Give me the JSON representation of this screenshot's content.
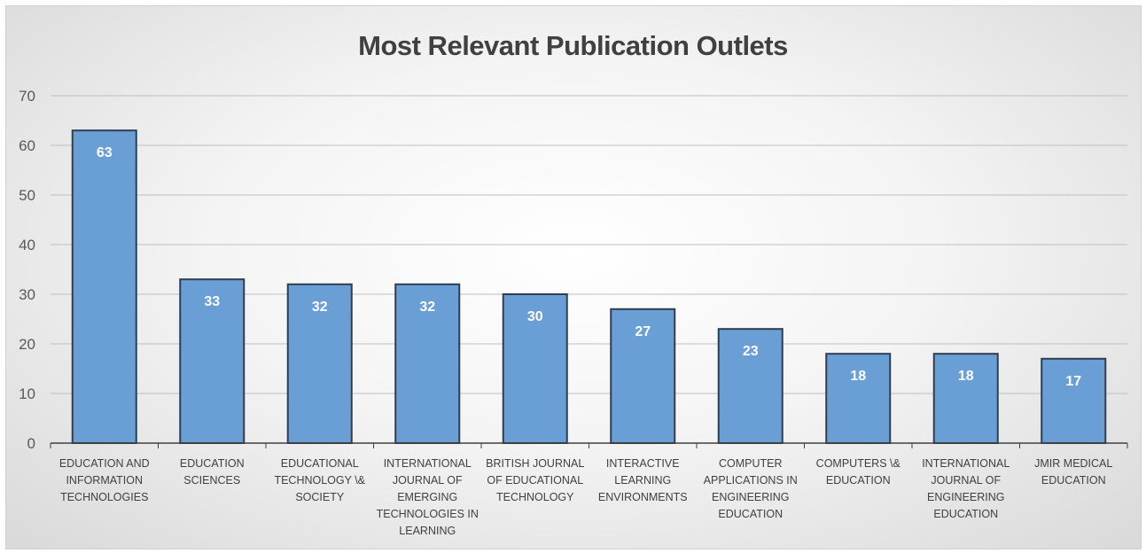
{
  "chart_data": {
    "type": "bar",
    "title": "Most Relevant Publication Outlets",
    "xlabel": "",
    "ylabel": "",
    "ylim": [
      0,
      70
    ],
    "yticks": [
      0,
      10,
      20,
      30,
      40,
      50,
      60,
      70
    ],
    "grid": true,
    "legend": "none",
    "categories": [
      [
        "EDUCATION AND",
        "INFORMATION",
        "TECHNOLOGIES"
      ],
      [
        "EDUCATION",
        "SCIENCES"
      ],
      [
        "EDUCATIONAL",
        "TECHNOLOGY \\&",
        "SOCIETY"
      ],
      [
        "INTERNATIONAL",
        "JOURNAL OF",
        "EMERGING",
        "TECHNOLOGIES IN",
        "LEARNING"
      ],
      [
        "BRITISH JOURNAL",
        "OF EDUCATIONAL",
        "TECHNOLOGY"
      ],
      [
        "INTERACTIVE",
        "LEARNING",
        "ENVIRONMENTS"
      ],
      [
        "COMPUTER",
        "APPLICATIONS IN",
        "ENGINEERING",
        "EDUCATION"
      ],
      [
        "COMPUTERS \\&",
        "EDUCATION"
      ],
      [
        "INTERNATIONAL",
        "JOURNAL OF",
        "ENGINEERING",
        "EDUCATION"
      ],
      [
        "JMIR MEDICAL",
        "EDUCATION"
      ]
    ],
    "values": [
      63,
      33,
      32,
      32,
      30,
      27,
      23,
      18,
      18,
      17
    ],
    "colors": {
      "bar_fill": "#6a9fd6",
      "bar_stroke": "#2f3e4e",
      "gridline": "#bfbfbf",
      "axis": "#404040"
    }
  }
}
